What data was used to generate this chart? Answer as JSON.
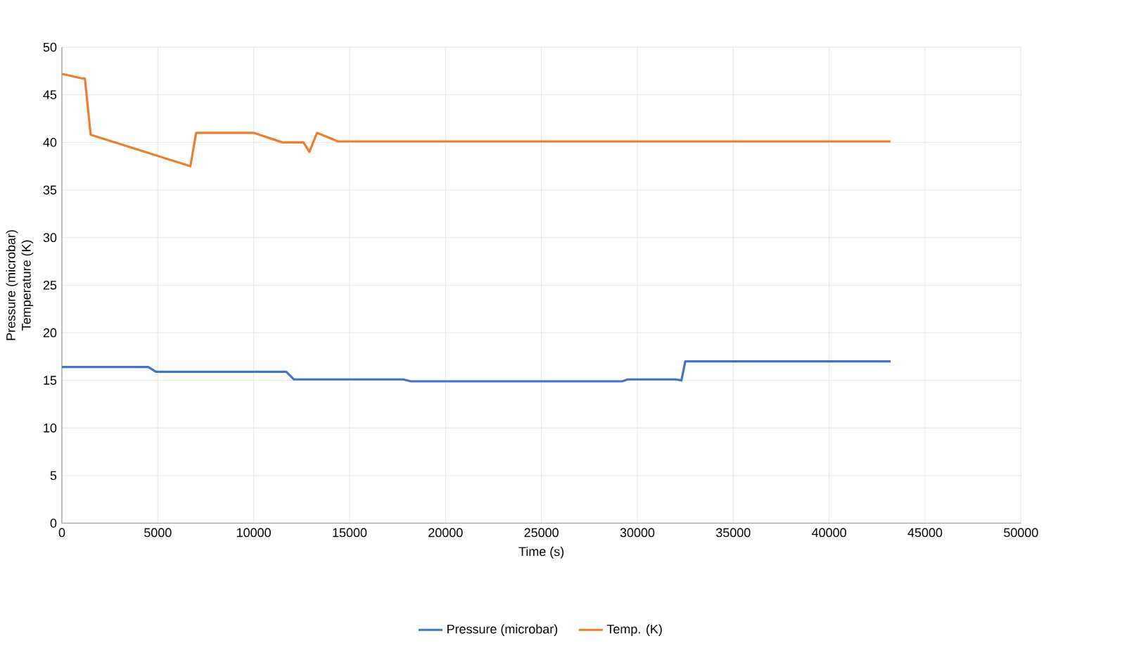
{
  "chart_data": {
    "type": "line",
    "xlabel": "Time (s)",
    "ylabel": "Pressure (microbar)\nTemperature (K)",
    "xlim": [
      0,
      50000
    ],
    "xticks": [
      0,
      5000,
      10000,
      15000,
      20000,
      25000,
      30000,
      35000,
      40000,
      45000,
      50000
    ],
    "ylim": [
      0,
      50
    ],
    "yticks": [
      0,
      5,
      10,
      15,
      20,
      25,
      30,
      35,
      40,
      45,
      50
    ],
    "grid": true,
    "legend": "bottom",
    "series": [
      {
        "name": "Pressure (microbar)",
        "color": "#4472c4",
        "x": [
          0,
          4500,
          4900,
          11700,
          12100,
          17800,
          18200,
          29200,
          29500,
          32000,
          32300,
          32500,
          43200
        ],
        "values": [
          16.4,
          16.4,
          15.9,
          15.9,
          15.1,
          15.1,
          14.9,
          14.9,
          15.1,
          15.1,
          15.0,
          17.0,
          17.0
        ]
      },
      {
        "name": "Temp. (K)",
        "color": "#ed7d31",
        "x": [
          0,
          1100,
          1200,
          1500,
          6700,
          7000,
          10000,
          11500,
          12600,
          12900,
          13300,
          14400,
          43200
        ],
        "values": [
          47.2,
          46.7,
          46.7,
          40.8,
          37.5,
          41.0,
          41.0,
          40.0,
          40.0,
          39.0,
          41.0,
          40.1,
          40.1
        ]
      }
    ]
  }
}
